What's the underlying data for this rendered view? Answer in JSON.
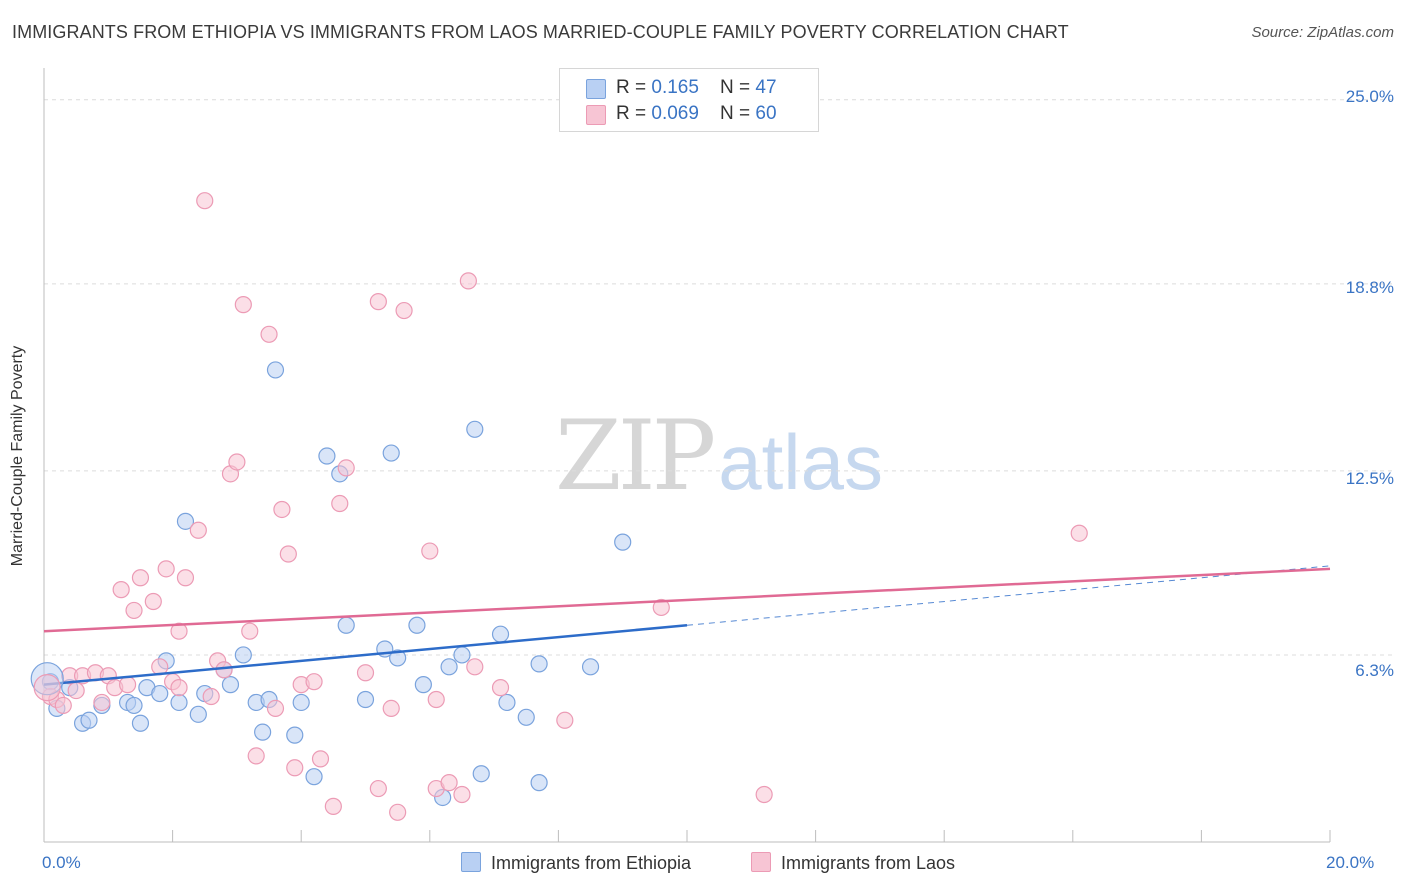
{
  "title": "IMMIGRANTS FROM ETHIOPIA VS IMMIGRANTS FROM LAOS MARRIED-COUPLE FAMILY POVERTY CORRELATION CHART",
  "source": "Source: ZipAtlas.com",
  "watermark": {
    "zip": "ZIP",
    "atlas": "atlas"
  },
  "legend": {
    "rows": [
      {
        "r_label": "R = ",
        "r_value": "0.165",
        "n_label": "N = ",
        "n_value": "47"
      },
      {
        "r_label": "R = ",
        "r_value": "0.069",
        "n_label": "N = ",
        "n_value": "60"
      }
    ]
  },
  "colors": {
    "ethiopia_fill": "#b9d0f3",
    "ethiopia_stroke": "#7aa3dd",
    "ethiopia_line": "#2d6cc9",
    "laos_fill": "#f7c5d4",
    "laos_stroke": "#ec9bb5",
    "laos_line": "#e06a94",
    "axis_label": "#3a74c4"
  },
  "chart_data": {
    "type": "scatter",
    "title": "IMMIGRANTS FROM ETHIOPIA VS IMMIGRANTS FROM LAOS MARRIED-COUPLE FAMILY POVERTY CORRELATION CHART",
    "xlabel": "",
    "ylabel": "Married-Couple Family Poverty",
    "xlim": [
      0,
      20
    ],
    "ylim": [
      0,
      25.8
    ],
    "x_tick_labels": [
      "0.0%",
      "20.0%"
    ],
    "y_ticks": [
      6.3,
      12.5,
      18.8,
      25.0
    ],
    "y_tick_labels": [
      "6.3%",
      "12.5%",
      "18.8%",
      "25.0%"
    ],
    "grid": true,
    "legend_position": "top-center",
    "series": [
      {
        "name": "Immigrants from Ethiopia",
        "trend": {
          "x0": 0,
          "y0": 5.3,
          "x1": 10.0,
          "y1": 7.3,
          "dashed_to_x": 20.0,
          "dashed_to_y": 9.3
        },
        "points": [
          [
            0.1,
            5.4
          ],
          [
            0.2,
            4.5
          ],
          [
            0.4,
            5.2
          ],
          [
            0.6,
            4.0
          ],
          [
            0.7,
            4.1
          ],
          [
            0.9,
            4.6
          ],
          [
            1.3,
            4.7
          ],
          [
            1.4,
            4.6
          ],
          [
            1.5,
            4.0
          ],
          [
            1.6,
            5.2
          ],
          [
            1.8,
            5.0
          ],
          [
            1.9,
            6.1
          ],
          [
            2.1,
            4.7
          ],
          [
            2.2,
            10.8
          ],
          [
            2.4,
            4.3
          ],
          [
            2.5,
            5.0
          ],
          [
            2.8,
            5.8
          ],
          [
            2.9,
            5.3
          ],
          [
            3.1,
            6.3
          ],
          [
            3.3,
            4.7
          ],
          [
            3.4,
            3.7
          ],
          [
            3.5,
            4.8
          ],
          [
            3.6,
            15.9
          ],
          [
            3.9,
            3.6
          ],
          [
            4.0,
            4.7
          ],
          [
            4.2,
            2.2
          ],
          [
            4.4,
            13.0
          ],
          [
            4.6,
            12.4
          ],
          [
            4.7,
            7.3
          ],
          [
            5.0,
            4.8
          ],
          [
            5.3,
            6.5
          ],
          [
            5.4,
            13.1
          ],
          [
            5.5,
            6.2
          ],
          [
            5.8,
            7.3
          ],
          [
            5.9,
            5.3
          ],
          [
            6.2,
            1.5
          ],
          [
            6.3,
            5.9
          ],
          [
            6.5,
            6.3
          ],
          [
            6.7,
            13.9
          ],
          [
            6.8,
            2.3
          ],
          [
            7.1,
            7.0
          ],
          [
            7.2,
            4.7
          ],
          [
            7.5,
            4.2
          ],
          [
            7.7,
            6.0
          ],
          [
            7.7,
            2.0
          ],
          [
            8.5,
            5.9
          ],
          [
            9.0,
            10.1
          ]
        ]
      },
      {
        "name": "Immigrants from Laos",
        "trend": {
          "x0": 0,
          "y0": 7.1,
          "x1": 20.0,
          "y1": 9.2
        },
        "points": [
          [
            0.1,
            4.9
          ],
          [
            0.2,
            4.8
          ],
          [
            0.3,
            4.6
          ],
          [
            0.4,
            5.6
          ],
          [
            0.5,
            5.1
          ],
          [
            0.6,
            5.6
          ],
          [
            0.8,
            5.7
          ],
          [
            0.9,
            4.7
          ],
          [
            1.0,
            5.6
          ],
          [
            1.1,
            5.2
          ],
          [
            1.2,
            8.5
          ],
          [
            1.3,
            5.3
          ],
          [
            1.4,
            7.8
          ],
          [
            1.5,
            8.9
          ],
          [
            1.7,
            8.1
          ],
          [
            1.8,
            5.9
          ],
          [
            1.9,
            9.2
          ],
          [
            2.0,
            5.4
          ],
          [
            2.1,
            7.1
          ],
          [
            2.1,
            5.2
          ],
          [
            2.2,
            8.9
          ],
          [
            2.4,
            10.5
          ],
          [
            2.5,
            21.6
          ],
          [
            2.6,
            4.9
          ],
          [
            2.7,
            6.1
          ],
          [
            2.8,
            5.8
          ],
          [
            2.9,
            12.4
          ],
          [
            3.0,
            12.8
          ],
          [
            3.1,
            18.1
          ],
          [
            3.2,
            7.1
          ],
          [
            3.3,
            2.9
          ],
          [
            3.5,
            17.1
          ],
          [
            3.6,
            4.5
          ],
          [
            3.7,
            11.2
          ],
          [
            3.8,
            9.7
          ],
          [
            3.9,
            2.5
          ],
          [
            4.0,
            5.3
          ],
          [
            4.2,
            5.4
          ],
          [
            4.3,
            2.8
          ],
          [
            4.5,
            1.2
          ],
          [
            4.6,
            11.4
          ],
          [
            4.7,
            12.6
          ],
          [
            5.0,
            5.7
          ],
          [
            5.2,
            1.8
          ],
          [
            5.2,
            18.2
          ],
          [
            5.4,
            4.5
          ],
          [
            5.5,
            1.0
          ],
          [
            5.6,
            17.9
          ],
          [
            6.0,
            9.8
          ],
          [
            6.1,
            1.8
          ],
          [
            6.3,
            2.0
          ],
          [
            6.5,
            1.6
          ],
          [
            6.6,
            18.9
          ],
          [
            6.7,
            5.9
          ],
          [
            7.1,
            5.2
          ],
          [
            8.1,
            4.1
          ],
          [
            9.6,
            7.9
          ],
          [
            11.2,
            1.6
          ],
          [
            16.1,
            10.4
          ],
          [
            6.1,
            4.8
          ]
        ]
      }
    ]
  },
  "bottom_legend": [
    {
      "label": "Immigrants from Ethiopia"
    },
    {
      "label": "Immigrants from Laos"
    }
  ]
}
